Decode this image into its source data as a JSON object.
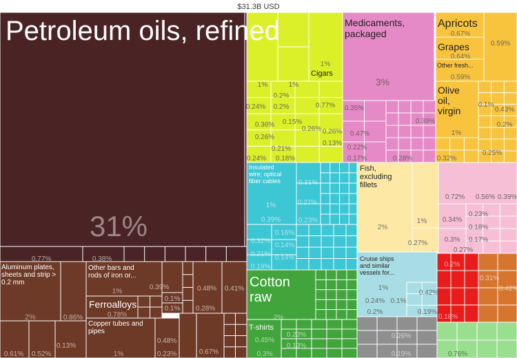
{
  "chart_data": {
    "type": "treemap",
    "title": "$31.3B USD",
    "colors": {
      "minerals": "#4a2424",
      "metals": "#6e3a28",
      "vegetables": "#dcf029",
      "chemicals": "#e68ac7",
      "foodstuffs": "#f9c43d",
      "textiles": "#41a53c",
      "machinery": "#3dc6d4",
      "animal": "#fde8a6",
      "transport": "#a9dde5",
      "misc": "#f7bfd6",
      "plastics": "#ea1b1b",
      "stone": "#d6762e",
      "footwear": "#8f8f8f",
      "instruments": "#99df8f",
      "border": "#ffffff"
    },
    "items": [
      {
        "name": "Petroleum oils, refined",
        "share": "31%",
        "category": "minerals",
        "label": "Petroleum oils, refined"
      },
      {
        "name": "Aluminum plates, sheets and strip > 0.2 mm",
        "share": "2%",
        "category": "metals",
        "label": "Aluminum plates, sheets and strip > 0.2 mm"
      },
      {
        "name": "Other bars and rods of iron or...",
        "share": "1%",
        "category": "metals",
        "label": "Other bars and rods of iron or..."
      },
      {
        "name": "Ferroalloys",
        "share": "0.78%",
        "category": "metals",
        "label": "Ferroalloys"
      },
      {
        "name": "Copper tubes and pipes",
        "share": "1%",
        "category": "metals",
        "label": "Copper tubes and pipes"
      },
      {
        "name": "Cigars",
        "share": "1%",
        "category": "vegetables",
        "label": "Cigars"
      },
      {
        "name": "Medicaments, packaged",
        "share": "3%",
        "category": "chemicals",
        "label": "Medicaments, packaged"
      },
      {
        "name": "Apricots",
        "share": "0.67%",
        "category": "foodstuffs",
        "label": "Apricots"
      },
      {
        "name": "Grapes",
        "share": "0.64%",
        "category": "foodstuffs",
        "label": "Grapes"
      },
      {
        "name": "Other fresh...",
        "share": "0.59%",
        "category": "foodstuffs",
        "label": "Other fresh..."
      },
      {
        "name": "Olive oil, virgin",
        "share": "1%",
        "category": "foodstuffs",
        "label": "Olive oil, virgin"
      },
      {
        "name": "Insulated wire; optical fiber cables",
        "share": "1%",
        "category": "machinery",
        "label": "Insulated wire; optical fiber cables"
      },
      {
        "name": "Fish, excluding fillets",
        "share": "2%",
        "category": "animal",
        "label": "Fish, excluding fillets"
      },
      {
        "name": "Cotton raw",
        "share": "2%",
        "category": "textiles",
        "label": "Cotton raw"
      },
      {
        "name": "T-shirts",
        "share": "0.45%",
        "category": "textiles",
        "label": "T-shirts"
      },
      {
        "name": "Cruise ships and similar vessels for...",
        "share": "1%",
        "category": "transport",
        "label": "Cruise ships and similar vessels for..."
      }
    ],
    "small_labels": [
      "0.77%",
      "0.38%",
      "0.86%",
      "0.61%",
      "0.52%",
      "0.13%",
      "0.39%",
      "0.1%",
      "0.1%",
      "0.48%",
      "0.41%",
      "0.28%",
      "0.48%",
      "0.23%",
      "0.67%",
      "1%",
      "1%",
      "0.2%",
      "0.24%",
      "0.2%",
      "0.77%",
      "0.36%",
      "0.15%",
      "0.26%",
      "0.26%",
      "0.26%",
      "0.13%",
      "0.21%",
      "0.24%",
      "0.18%",
      "0.35%",
      "0.39%",
      "0.47%",
      "0.22%",
      "0.17%",
      "0.28%",
      "0.59%",
      "0.1%",
      "0.43%",
      "0.2%",
      "0.25%",
      "0.32%",
      "0.31%",
      "0.27%",
      "0.39%",
      "0.23%",
      "0.16%",
      "0.32%",
      "0.14%",
      "0.21%",
      "0.14%",
      "0.19%",
      "1%",
      "0.27%",
      "0.72%",
      "0.56%",
      "0.39%",
      "0.34%",
      "0.23%",
      "0.18%",
      "0.3%",
      "0.17%",
      "0.27%",
      "0.42%",
      "0.24%",
      "0.1%",
      "0.2%",
      "0.19%",
      "0.23%",
      "0.13%",
      "0.3%",
      "0.26%",
      "0.19%",
      "0.2%",
      "0.31%",
      "0.42%",
      "0.18%",
      "0.76%"
    ]
  }
}
